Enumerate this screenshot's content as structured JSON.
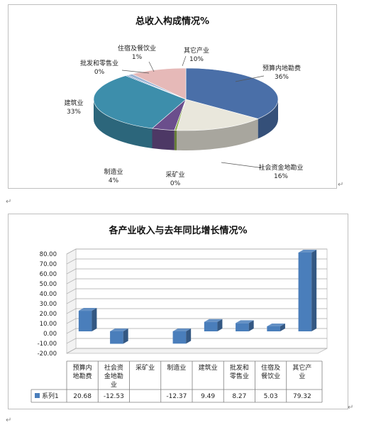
{
  "chart_data": [
    {
      "type": "pie",
      "title": "总收入构成情况%",
      "slices": [
        {
          "label": "预算内地勘费",
          "percent_label": "36%",
          "value": 36,
          "color": "#4a6fa8"
        },
        {
          "label": "社会资金地勘业",
          "percent_label": "16%",
          "value": 16,
          "color": "#e9e7dc"
        },
        {
          "label": "采矿业",
          "percent_label": "0%",
          "value": 0.4,
          "color": "#8fae4f"
        },
        {
          "label": "制造业",
          "percent_label": "4%",
          "value": 4,
          "color": "#6b4e8c"
        },
        {
          "label": "建筑业",
          "percent_label": "33%",
          "value": 33,
          "color": "#3d8eab"
        },
        {
          "label": "批发和零售业",
          "percent_label": "0%",
          "value": 0.4,
          "color": "#6a90c2"
        },
        {
          "label": "住宿及餐饮业",
          "percent_label": "1%",
          "value": 1,
          "color": "#9ab3d4"
        },
        {
          "label": "其它产业",
          "percent_label": "10%",
          "value": 10,
          "color": "#e6b9b8"
        }
      ]
    },
    {
      "type": "bar",
      "title": "各产业收入与去年同比增长情况%",
      "categories": [
        "预算内\n地勘费",
        "社会资\n金地勘\n业",
        "采矿业",
        "制造业",
        "建筑业",
        "批发和\n零售业",
        "住宿及\n餐饮业",
        "其它产\n业"
      ],
      "series": [
        {
          "name": "系列1",
          "values": [
            20.68,
            -12.53,
            null,
            -12.37,
            9.49,
            8.27,
            5.03,
            79.32
          ],
          "value_labels": [
            "20.68",
            "-12.53",
            "",
            "-12.37",
            "9.49",
            "8.27",
            "5.03",
            "79.32"
          ],
          "color": "#4a7ebb"
        }
      ],
      "yticks": [
        "80.00",
        "70.00",
        "60.00",
        "50.00",
        "40.00",
        "30.00",
        "20.00",
        "10.00",
        "0.00",
        "-10.00",
        "-20.00"
      ],
      "ylim": [
        -20,
        80
      ],
      "grid": true,
      "legend": "data-table"
    }
  ],
  "marks": {
    "paragraph": "↵"
  }
}
